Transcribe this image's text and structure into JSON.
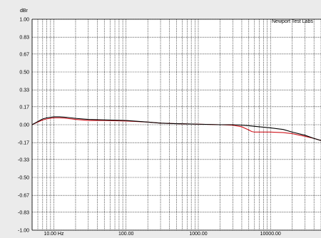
{
  "chart_data": {
    "type": "line",
    "ylabel": "dBr",
    "annotation": "Newport Test Labs",
    "x_scale": "log",
    "xlim": [
      5,
      50000
    ],
    "ylim": [
      -1.0,
      1.0
    ],
    "grid": true,
    "y_ticks": [
      "1.00",
      "0.83",
      "0.67",
      "0.50",
      "0.33",
      "0.17",
      "0.00",
      "-0.17",
      "-0.33",
      "-0.50",
      "-0.67",
      "-0.83",
      "-1.00"
    ],
    "y_tick_values": [
      1.0,
      0.83,
      0.67,
      0.5,
      0.33,
      0.17,
      0.0,
      -0.17,
      -0.33,
      -0.5,
      -0.67,
      -0.83,
      -1.0
    ],
    "x_ticks": [
      {
        "value": 10,
        "label": "10.00 Hz"
      },
      {
        "value": 100,
        "label": "100.00"
      },
      {
        "value": 1000,
        "label": "1000.00"
      },
      {
        "value": 10000,
        "label": "10000.00"
      }
    ],
    "series": [
      {
        "color": "#000000",
        "points": [
          [
            5,
            0.0
          ],
          [
            6,
            0.03
          ],
          [
            7,
            0.055
          ],
          [
            8,
            0.065
          ],
          [
            10,
            0.075
          ],
          [
            12,
            0.075
          ],
          [
            15,
            0.07
          ],
          [
            20,
            0.06
          ],
          [
            30,
            0.05
          ],
          [
            50,
            0.045
          ],
          [
            100,
            0.04
          ],
          [
            200,
            0.025
          ],
          [
            300,
            0.015
          ],
          [
            500,
            0.01
          ],
          [
            1000,
            0.005
          ],
          [
            2000,
            0.0
          ],
          [
            3000,
            0.0
          ],
          [
            4000,
            -0.005
          ],
          [
            5000,
            -0.01
          ],
          [
            7000,
            -0.02
          ],
          [
            10000,
            -0.03
          ],
          [
            15000,
            -0.045
          ],
          [
            20000,
            -0.07
          ],
          [
            30000,
            -0.1
          ],
          [
            40000,
            -0.13
          ],
          [
            50000,
            -0.15
          ]
        ]
      },
      {
        "color": "#d0161e",
        "points": [
          [
            5,
            0.0
          ],
          [
            6,
            0.025
          ],
          [
            7,
            0.045
          ],
          [
            8,
            0.055
          ],
          [
            10,
            0.065
          ],
          [
            12,
            0.065
          ],
          [
            15,
            0.06
          ],
          [
            20,
            0.05
          ],
          [
            30,
            0.04
          ],
          [
            50,
            0.04
          ],
          [
            100,
            0.035
          ],
          [
            200,
            0.025
          ],
          [
            300,
            0.015
          ],
          [
            500,
            0.01
          ],
          [
            1000,
            0.005
          ],
          [
            2000,
            0.0
          ],
          [
            3000,
            -0.005
          ],
          [
            4000,
            -0.02
          ],
          [
            5000,
            -0.05
          ],
          [
            5500,
            -0.065
          ],
          [
            6000,
            -0.07
          ],
          [
            8000,
            -0.07
          ],
          [
            10000,
            -0.07
          ],
          [
            15000,
            -0.075
          ],
          [
            20000,
            -0.085
          ],
          [
            30000,
            -0.11
          ],
          [
            40000,
            -0.13
          ],
          [
            50000,
            -0.15
          ]
        ]
      }
    ]
  }
}
